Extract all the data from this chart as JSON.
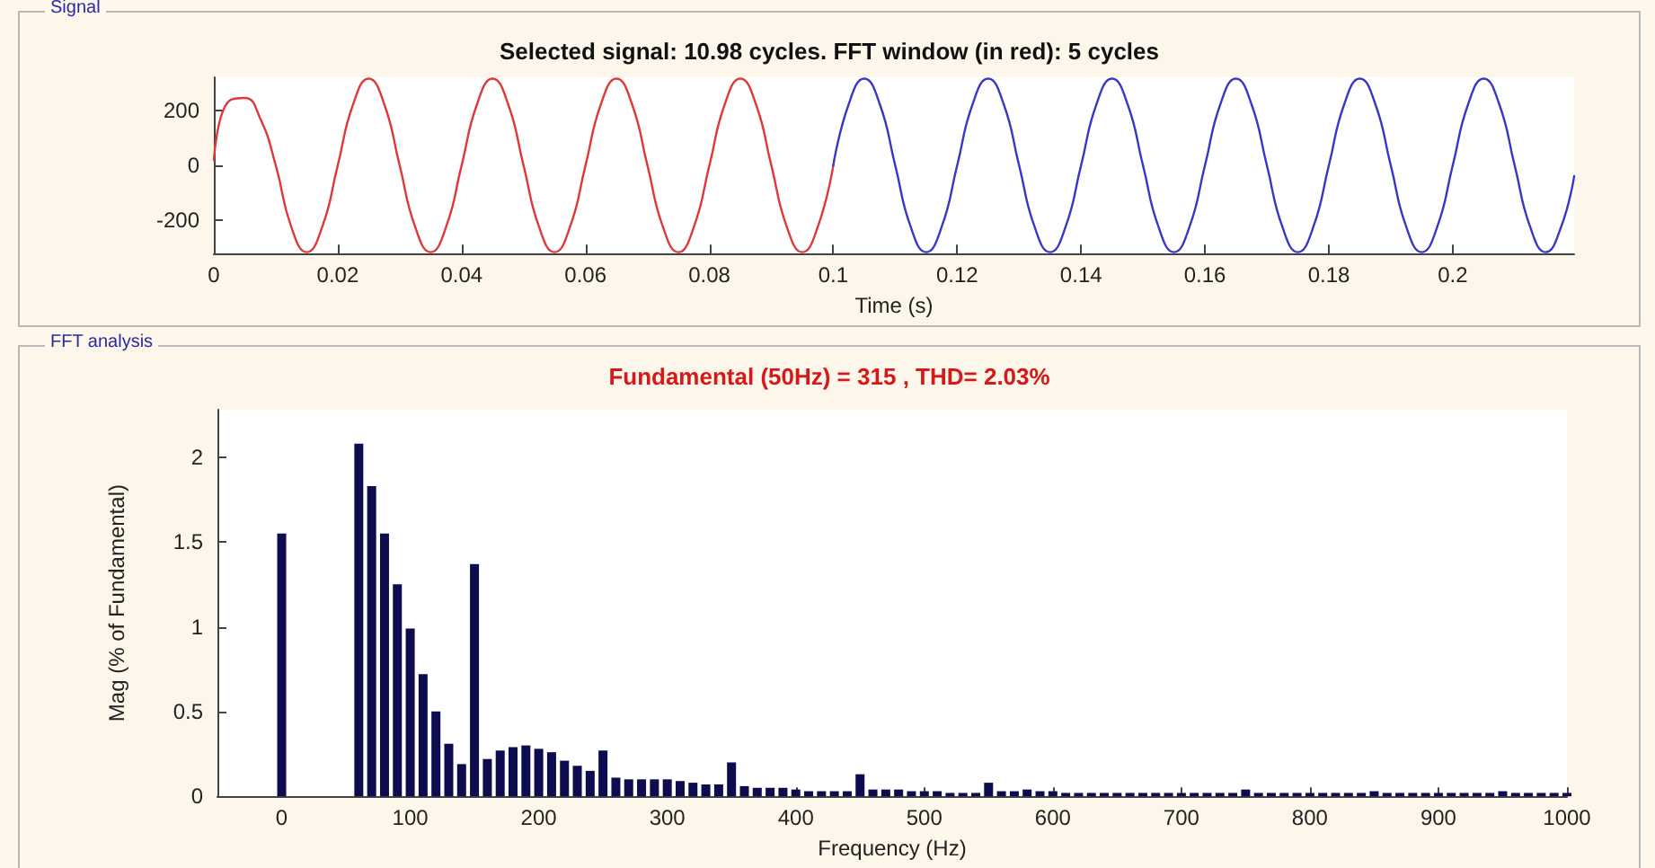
{
  "chart_data": [
    {
      "type": "line",
      "title": "Selected signal: 10.98 cycles. FFT window (in red): 5 cycles",
      "xlabel": "Time (s)",
      "annotations": [
        "Signal"
      ],
      "xlim": [
        0,
        0.2196
      ],
      "xticks": [
        0,
        0.02,
        0.04,
        0.06,
        0.08,
        0.1,
        0.12,
        0.14,
        0.16,
        0.18,
        0.2
      ],
      "ylim": [
        -320,
        320
      ],
      "yticks": [
        -200,
        0,
        200
      ],
      "grid": false,
      "marker": "none",
      "line_style": "solid",
      "series": [
        {
          "color": "#e03838",
          "x": [
            0,
            0.0025,
            0.005,
            0.0075,
            0.01,
            0.0125,
            0.015,
            0.0175,
            0.02,
            0.0225,
            0.025,
            0.0275,
            0.03,
            0.0325,
            0.035,
            0.0375,
            0.04,
            0.0425,
            0.045,
            0.0475,
            0.05,
            0.0525,
            0.055,
            0.0575,
            0.06,
            0.0625,
            0.065,
            0.0675,
            0.07,
            0.0725,
            0.075,
            0.0775,
            0.08,
            0.0825,
            0.085,
            0.0875,
            0.09,
            0.0925,
            0.095,
            0.0975,
            0.1
          ],
          "values": [
            20,
            235,
            245,
            170,
            0,
            -223,
            -315,
            -223,
            0,
            223,
            315,
            223,
            0,
            -223,
            -315,
            -223,
            0,
            223,
            315,
            223,
            0,
            -223,
            -315,
            -223,
            0,
            223,
            315,
            223,
            0,
            -223,
            -315,
            -223,
            0,
            223,
            315,
            223,
            0,
            -223,
            -315,
            -223,
            0
          ]
        },
        {
          "color": "#3838c8",
          "x": [
            0.1,
            0.1025,
            0.105,
            0.1075,
            0.11,
            0.1125,
            0.115,
            0.1175,
            0.12,
            0.1225,
            0.125,
            0.1275,
            0.13,
            0.1325,
            0.135,
            0.1375,
            0.14,
            0.1425,
            0.145,
            0.1475,
            0.15,
            0.1525,
            0.155,
            0.1575,
            0.16,
            0.1625,
            0.165,
            0.1675,
            0.17,
            0.1725,
            0.175,
            0.1775,
            0.18,
            0.1825,
            0.185,
            0.1875,
            0.19,
            0.1925,
            0.195,
            0.1975,
            0.2,
            0.2025,
            0.205,
            0.2075,
            0.21,
            0.2125,
            0.215,
            0.2175,
            0.2196
          ],
          "values": [
            0,
            223,
            315,
            223,
            0,
            -223,
            -315,
            -223,
            0,
            223,
            315,
            223,
            0,
            -223,
            -315,
            -223,
            0,
            223,
            315,
            223,
            0,
            -223,
            -315,
            -223,
            0,
            223,
            315,
            223,
            0,
            -223,
            -315,
            -223,
            0,
            223,
            315,
            223,
            0,
            -223,
            -315,
            -223,
            0,
            223,
            315,
            223,
            0,
            -223,
            -315,
            -223,
            -39
          ]
        }
      ]
    },
    {
      "type": "bar",
      "title": "Fundamental (50Hz) = 315 , THD= 2.03%",
      "xlabel": "Frequency (Hz)",
      "ylabel": "Mag (% of Fundamental)",
      "annotations": [
        "FFT analysis"
      ],
      "xlim": [
        -50,
        1000
      ],
      "xticks": [
        0,
        100,
        200,
        300,
        400,
        500,
        600,
        700,
        800,
        900,
        1000
      ],
      "ylim": [
        0,
        2.28
      ],
      "yticks": [
        0,
        0.5,
        1,
        1.5,
        2
      ],
      "grid": false,
      "series": [
        {
          "color": "#0c0c4e",
          "x": [
            0,
            10,
            20,
            30,
            40,
            50,
            60,
            70,
            80,
            90,
            100,
            110,
            120,
            130,
            140,
            150,
            160,
            170,
            180,
            190,
            200,
            210,
            220,
            230,
            240,
            250,
            260,
            270,
            280,
            290,
            300,
            310,
            320,
            330,
            340,
            350,
            360,
            370,
            380,
            390,
            400,
            410,
            420,
            430,
            440,
            450,
            460,
            470,
            480,
            490,
            500,
            510,
            520,
            530,
            540,
            550,
            560,
            570,
            580,
            590,
            600,
            610,
            620,
            630,
            640,
            650,
            660,
            670,
            680,
            690,
            700,
            710,
            720,
            730,
            740,
            750,
            760,
            770,
            780,
            790,
            800,
            810,
            820,
            830,
            840,
            850,
            860,
            870,
            880,
            890,
            900,
            910,
            920,
            930,
            940,
            950,
            960,
            970,
            980,
            990,
            1000
          ],
          "values": [
            1.55,
            null,
            null,
            null,
            null,
            null,
            2.08,
            1.83,
            1.55,
            1.25,
            0.99,
            0.72,
            0.5,
            0.31,
            0.19,
            1.37,
            0.22,
            0.27,
            0.29,
            0.3,
            0.28,
            0.26,
            0.21,
            0.18,
            0.15,
            0.27,
            0.11,
            0.1,
            0.1,
            0.1,
            0.1,
            0.09,
            0.08,
            0.07,
            0.07,
            0.2,
            0.06,
            0.05,
            0.05,
            0.05,
            0.04,
            0.03,
            0.03,
            0.03,
            0.03,
            0.13,
            0.04,
            0.04,
            0.04,
            0.03,
            0.03,
            0.03,
            0.02,
            0.02,
            0.02,
            0.08,
            0.03,
            0.03,
            0.04,
            0.03,
            0.03,
            0.02,
            0.02,
            0.02,
            0.02,
            0.02,
            0.02,
            0.02,
            0.02,
            0.02,
            0.02,
            0.02,
            0.02,
            0.02,
            0.02,
            0.04,
            0.02,
            0.02,
            0.02,
            0.02,
            0.02,
            0.02,
            0.02,
            0.02,
            0.02,
            0.03,
            0.02,
            0.02,
            0.02,
            0.02,
            0.02,
            0.02,
            0.02,
            0.02,
            0.02,
            0.03,
            0.02,
            0.02,
            0.02,
            0.02,
            0.02
          ]
        }
      ]
    }
  ]
}
